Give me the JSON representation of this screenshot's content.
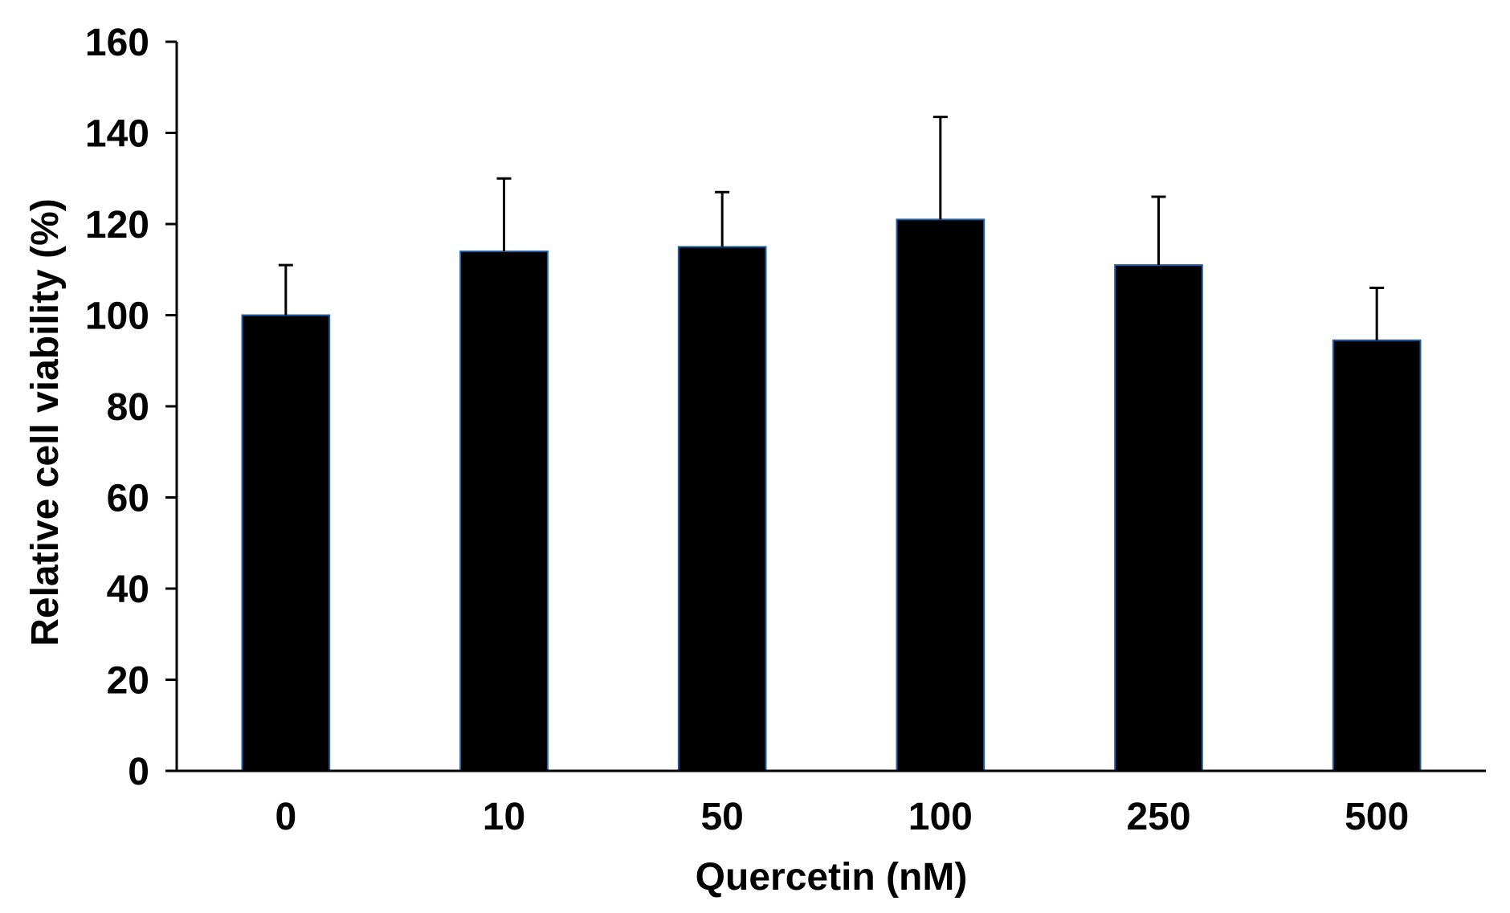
{
  "chart_data": {
    "type": "bar",
    "categories": [
      "0",
      "10",
      "50",
      "100",
      "250",
      "500"
    ],
    "values": [
      100,
      114,
      115,
      121,
      111,
      94.5
    ],
    "error_upper": [
      111,
      130,
      127,
      143.5,
      126,
      106
    ],
    "xlabel": "Quercetin (nM)",
    "ylabel": "Relative cell viability (%)",
    "ylim": [
      0,
      160
    ],
    "yticks": [
      "0",
      "20",
      "40",
      "60",
      "80",
      "100",
      "120",
      "140",
      "160"
    ],
    "grid": false,
    "bar_color": "#000000",
    "bar_edge_color": "#1f5fa8"
  }
}
